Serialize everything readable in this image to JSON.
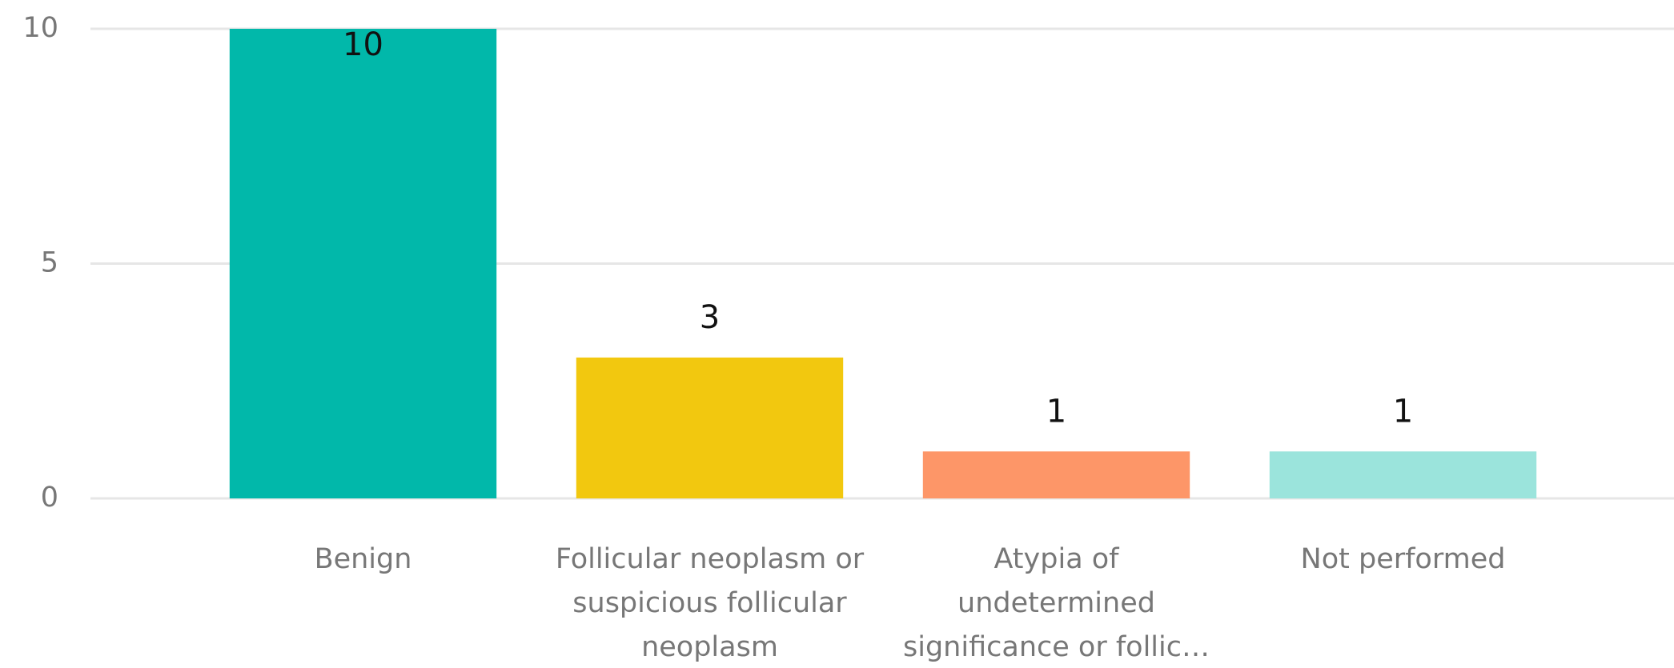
{
  "chart_data": {
    "type": "bar",
    "categories": [
      "Benign",
      "Follicular neoplasm or suspicious follicular neoplasm",
      "Atypia of undetermined significance or follic…",
      "Not performed"
    ],
    "values": [
      10,
      3,
      1,
      1
    ],
    "colors": [
      "#01b8aa",
      "#f2c80f",
      "#fd9668",
      "#9be4dc"
    ],
    "ylim": [
      0,
      10
    ],
    "yticks": [
      0,
      5,
      10
    ],
    "grid": true
  }
}
